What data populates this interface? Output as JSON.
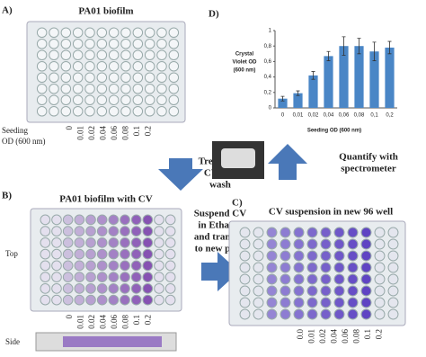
{
  "panel_a": {
    "label": "A)",
    "title": "PA01 biofilm",
    "axis_label": [
      "Seeding",
      "OD (600 nm)"
    ],
    "concentrations": [
      "0",
      "0.01",
      "0.02",
      "0.04",
      "0.06",
      "0.08",
      "0.1",
      "0.2"
    ]
  },
  "step_1": [
    "Treat with",
    "CV and",
    "wash"
  ],
  "panel_b": {
    "label": "B)",
    "title": "PA01 biofilm with CV",
    "top_label": "Top",
    "side_label": "Side",
    "concentrations": [
      "0",
      "0.01",
      "0.02",
      "0.04",
      "0.06",
      "0.08",
      "0.1",
      "0.2"
    ]
  },
  "step_2": [
    "Suspend CV",
    "in Ethanol",
    "and transfer",
    "to new plate"
  ],
  "panel_c": {
    "label": "C)",
    "title": "CV suspension in new  96 well",
    "concentrations": [
      "0.0",
      "0.01",
      "0.02",
      "0.04",
      "0.06",
      "0.08",
      "0.1",
      "0.2"
    ]
  },
  "step_3": [
    "Quantify with",
    "spectrometer"
  ],
  "chart_data": {
    "type": "bar",
    "label": "D)",
    "y_label": [
      "Crystal",
      "Violet OD",
      "(600 nm)"
    ],
    "x_label": "Seeding OD (600 nm)",
    "categories": [
      "0",
      "0,01",
      "0,02",
      "0,04",
      "0,06",
      "0,08",
      "0,1",
      "0,2"
    ],
    "values": [
      0.12,
      0.19,
      0.42,
      0.67,
      0.8,
      0.8,
      0.73,
      0.78
    ],
    "errors": [
      0.03,
      0.03,
      0.05,
      0.06,
      0.12,
      0.1,
      0.12,
      0.08
    ],
    "color": "#4a86c6",
    "ylim": [
      0,
      1
    ],
    "yticks": [
      0,
      {
        "value": 0.2,
        "label": "0,2"
      },
      {
        "value": 0.4,
        "label": "0,4"
      },
      {
        "value": 0.6,
        "label": "0,6"
      },
      {
        "value": 0.8,
        "label": "0,8"
      },
      1
    ]
  }
}
